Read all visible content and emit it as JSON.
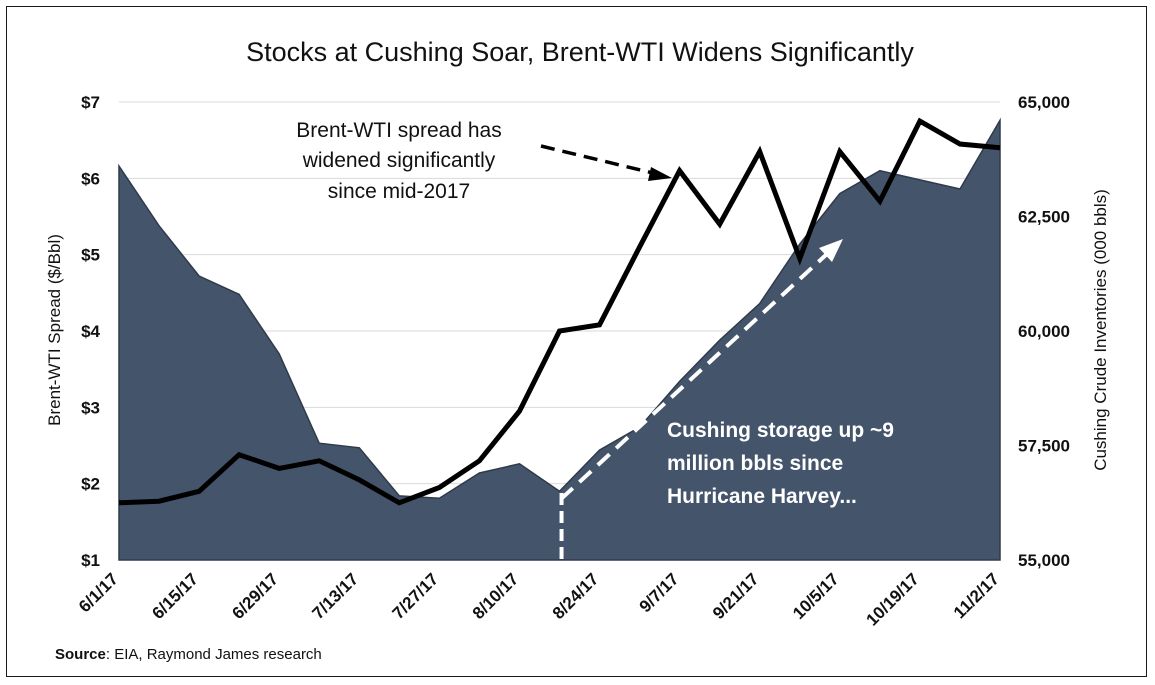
{
  "chart_data": {
    "type": "line",
    "title": "Stocks at Cushing Soar, Brent-WTI Widens Significantly",
    "ylabel_left": "Brent-WTI Spread ($/Bbl)",
    "ylabel_right": "Cushing Crude Inventories (000 bbls)",
    "xlabel": "",
    "x": [
      "6/1/17",
      "6/8/17",
      "6/15/17",
      "6/22/17",
      "6/29/17",
      "7/6/17",
      "7/13/17",
      "7/20/17",
      "7/27/17",
      "8/3/17",
      "8/10/17",
      "8/17/17",
      "8/24/17",
      "8/31/17",
      "9/7/17",
      "9/14/17",
      "9/21/17",
      "9/28/17",
      "10/5/17",
      "10/12/17",
      "10/19/17",
      "10/26/17",
      "11/2/17"
    ],
    "x_tick_labels": [
      "6/1/17",
      "6/15/17",
      "6/29/17",
      "7/13/17",
      "7/27/17",
      "8/10/17",
      "8/24/17",
      "9/7/17",
      "9/21/17",
      "10/5/17",
      "10/19/17",
      "11/2/17"
    ],
    "ylim_left": [
      1,
      7
    ],
    "y_ticks_left": [
      "$1",
      "$2",
      "$3",
      "$4",
      "$5",
      "$6",
      "$7"
    ],
    "ylim_right": [
      55000,
      65000
    ],
    "y_ticks_right": [
      "55,000",
      "57,500",
      "60,000",
      "62,500",
      "65,000"
    ],
    "grid": "horizontal",
    "series": [
      {
        "axis": "right",
        "style": "area",
        "color": "#44546a",
        "values": [
          63600,
          62300,
          61200,
          60800,
          59500,
          57550,
          57450,
          56400,
          56350,
          56900,
          57100,
          56500,
          57400,
          57900,
          58900,
          59800,
          60600,
          61900,
          63000,
          63500,
          63300,
          63100,
          64600
        ]
      },
      {
        "axis": "left",
        "style": "line",
        "color": "#000000",
        "values": [
          1.75,
          1.77,
          1.9,
          2.38,
          2.2,
          2.3,
          2.05,
          1.75,
          1.95,
          2.3,
          2.95,
          4.0,
          4.08,
          5.1,
          6.1,
          5.4,
          6.35,
          4.95,
          6.35,
          5.7,
          6.75,
          6.45,
          6.4
        ]
      }
    ],
    "annotations": [
      {
        "lines": [
          "Brent-WTI spread has",
          "widened significantly",
          "since mid-2017"
        ]
      },
      {
        "lines": [
          "Cushing storage up ~9",
          "million bbls since",
          "Hurricane Harvey..."
        ]
      }
    ]
  },
  "source": {
    "label": "Source",
    "text": ": EIA, Raymond James research"
  },
  "colors": {
    "area": "#44546a",
    "line": "#000000",
    "grid": "#d9d9d9",
    "arrow_dark": "#000000",
    "arrow_light": "#ffffff"
  }
}
